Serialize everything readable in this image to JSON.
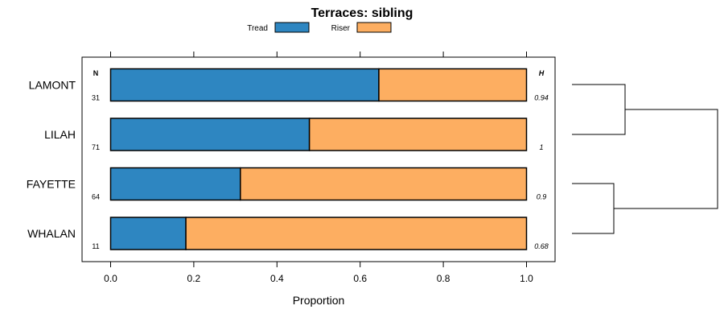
{
  "chart_data": {
    "type": "bar",
    "stacked": true,
    "orientation": "horizontal",
    "title": "Terraces: sibling",
    "xlabel": "Proportion",
    "ylabel": "",
    "xlim": [
      0,
      1
    ],
    "xticks": [
      0.0,
      0.2,
      0.4,
      0.6,
      0.8,
      1.0
    ],
    "xtick_labels": [
      "0.0",
      "0.2",
      "0.4",
      "0.6",
      "0.8",
      "1.0"
    ],
    "categories": [
      "LAMONT",
      "LILAH",
      "FAYETTE",
      "WHALAN"
    ],
    "series": [
      {
        "name": "Tread",
        "color": "#2e86c1",
        "values": [
          0.645,
          0.478,
          0.312,
          0.181
        ]
      },
      {
        "name": "Riser",
        "color": "#fdae61",
        "values": [
          0.355,
          0.522,
          0.688,
          0.819
        ]
      }
    ],
    "n_header": "N",
    "n_values": [
      "31",
      "71",
      "64",
      "11"
    ],
    "h_header": "H",
    "h_values": [
      "0.94",
      "1",
      "0.9",
      "0.68"
    ],
    "legend": {
      "position": "top",
      "entries": [
        "Tread",
        "Riser"
      ]
    },
    "dendrogram": {
      "groups": [
        [
          "LAMONT",
          "LILAH"
        ],
        [
          "FAYETTE",
          "WHALAN"
        ]
      ]
    }
  }
}
